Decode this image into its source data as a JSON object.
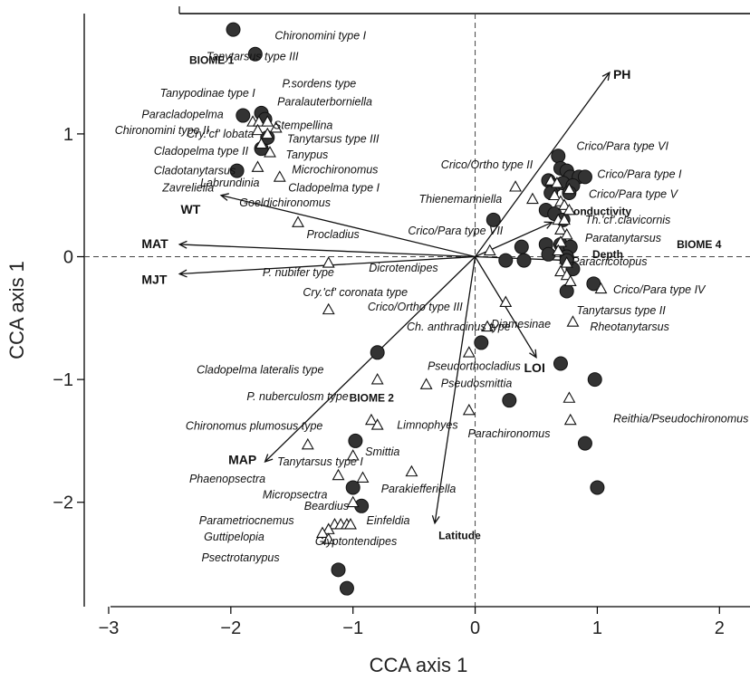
{
  "chart_data": {
    "type": "scatter",
    "xlabel": "CCA axis 1",
    "ylabel": "CCA axis 1",
    "xlim": [
      -3.2,
      2.25
    ],
    "ylim": [
      -2.85,
      1.98
    ],
    "xticks": [
      -3,
      -2,
      -1,
      0,
      1,
      2
    ],
    "yticks": [
      -2,
      -1,
      0,
      1
    ],
    "grid": false,
    "reference_lines": {
      "x": 0,
      "y": 0,
      "style": "dashed"
    },
    "sites": [
      [
        -1.98,
        1.85
      ],
      [
        -1.8,
        1.65
      ],
      [
        -1.9,
        1.15
      ],
      [
        -1.75,
        1.17
      ],
      [
        -1.72,
        1.12
      ],
      [
        -1.75,
        0.88
      ],
      [
        -1.7,
        0.97
      ],
      [
        -1.95,
        0.7
      ],
      [
        0.68,
        0.82
      ],
      [
        0.7,
        0.72
      ],
      [
        0.75,
        0.7
      ],
      [
        0.78,
        0.65
      ],
      [
        0.85,
        0.65
      ],
      [
        0.9,
        0.65
      ],
      [
        0.6,
        0.62
      ],
      [
        0.65,
        0.58
      ],
      [
        0.72,
        0.6
      ],
      [
        0.8,
        0.58
      ],
      [
        0.77,
        0.52
      ],
      [
        0.62,
        0.52
      ],
      [
        0.58,
        0.38
      ],
      [
        0.65,
        0.35
      ],
      [
        0.72,
        0.3
      ],
      [
        0.15,
        0.3
      ],
      [
        0.38,
        0.08
      ],
      [
        0.58,
        0.1
      ],
      [
        0.7,
        0.1
      ],
      [
        0.78,
        0.08
      ],
      [
        0.6,
        0.02
      ],
      [
        0.75,
        0.0
      ],
      [
        0.25,
        -0.03
      ],
      [
        0.4,
        -0.03
      ],
      [
        0.75,
        -0.03
      ],
      [
        0.8,
        -0.1
      ],
      [
        0.75,
        -0.28
      ],
      [
        0.97,
        -0.22
      ],
      [
        -0.8,
        -0.78
      ],
      [
        0.05,
        -0.7
      ],
      [
        0.7,
        -0.87
      ],
      [
        0.98,
        -1.0
      ],
      [
        0.28,
        -1.17
      ],
      [
        0.9,
        -1.52
      ],
      [
        -0.98,
        -1.5
      ],
      [
        -1.0,
        -1.88
      ],
      [
        -0.93,
        -2.03
      ],
      [
        1.0,
        -1.88
      ],
      [
        -1.12,
        -2.55
      ],
      [
        -1.05,
        -2.7
      ]
    ],
    "taxa_points": [
      [
        -1.82,
        1.1
      ],
      [
        -1.77,
        1.1
      ],
      [
        -1.7,
        1.1
      ],
      [
        -1.63,
        1.05
      ],
      [
        -1.78,
        1.03
      ],
      [
        -1.7,
        1.0
      ],
      [
        -1.75,
        0.92
      ],
      [
        -1.68,
        0.85
      ],
      [
        -1.78,
        0.73
      ],
      [
        -1.6,
        0.65
      ],
      [
        -1.45,
        0.28
      ],
      [
        -1.2,
        -0.05
      ],
      [
        -1.2,
        -0.43
      ],
      [
        0.12,
        0.05
      ],
      [
        0.33,
        0.57
      ],
      [
        0.47,
        0.47
      ],
      [
        0.62,
        0.62
      ],
      [
        0.67,
        0.6
      ],
      [
        0.77,
        0.55
      ],
      [
        0.65,
        0.5
      ],
      [
        0.7,
        0.45
      ],
      [
        0.73,
        0.42
      ],
      [
        0.77,
        0.38
      ],
      [
        0.68,
        0.3
      ],
      [
        0.73,
        0.3
      ],
      [
        0.7,
        0.22
      ],
      [
        0.75,
        0.18
      ],
      [
        0.7,
        0.12
      ],
      [
        0.68,
        0.05
      ],
      [
        0.75,
        -0.05
      ],
      [
        0.7,
        -0.12
      ],
      [
        0.75,
        -0.15
      ],
      [
        0.78,
        -0.2
      ],
      [
        1.03,
        -0.26
      ],
      [
        0.25,
        -0.37
      ],
      [
        0.1,
        -0.57
      ],
      [
        0.8,
        -0.53
      ],
      [
        -0.8,
        -1.0
      ],
      [
        -0.4,
        -1.04
      ],
      [
        -0.05,
        -0.78
      ],
      [
        -0.05,
        -1.25
      ],
      [
        0.77,
        -1.15
      ],
      [
        0.78,
        -1.33
      ],
      [
        -0.85,
        -1.33
      ],
      [
        -0.8,
        -1.37
      ],
      [
        -1.37,
        -1.53
      ],
      [
        -1.0,
        -1.62
      ],
      [
        -0.52,
        -1.75
      ],
      [
        -1.12,
        -1.78
      ],
      [
        -0.92,
        -1.8
      ],
      [
        -1.0,
        -2.0
      ],
      [
        -1.15,
        -2.18
      ],
      [
        -1.1,
        -2.18
      ],
      [
        -1.05,
        -2.18
      ],
      [
        -1.02,
        -2.18
      ],
      [
        -1.2,
        -2.22
      ],
      [
        -1.25,
        -2.25
      ],
      [
        -1.2,
        -2.3
      ]
    ],
    "taxa_labels": [
      {
        "x": -1.64,
        "y": 1.77,
        "text": "Chironomini type I"
      },
      {
        "x": -2.2,
        "y": 1.6,
        "text": "Tanytarsus type III"
      },
      {
        "x": -1.58,
        "y": 1.38,
        "text": "P.sordens type"
      },
      {
        "x": -2.58,
        "y": 1.3,
        "text": "Tanypodinae type I"
      },
      {
        "x": -1.62,
        "y": 1.23,
        "text": "Paralauterborniella"
      },
      {
        "x": -2.73,
        "y": 1.13,
        "text": "Paracladopelma"
      },
      {
        "x": -1.65,
        "y": 1.04,
        "text": "Stempellina"
      },
      {
        "x": -2.95,
        "y": 1.0,
        "text": "Chironomini type II"
      },
      {
        "x": -2.36,
        "y": 0.97,
        "text": "Cry.'cf' lobata"
      },
      {
        "x": -1.54,
        "y": 0.93,
        "text": "Tanytarsus type III"
      },
      {
        "x": -2.63,
        "y": 0.83,
        "text": "Cladopelma type II"
      },
      {
        "x": -1.55,
        "y": 0.8,
        "text": "Tanypus"
      },
      {
        "x": -2.63,
        "y": 0.67,
        "text": "Cladotanytarsus"
      },
      {
        "x": -1.5,
        "y": 0.68,
        "text": "Microchironomus"
      },
      {
        "x": -2.25,
        "y": 0.57,
        "text": "Labrundinia"
      },
      {
        "x": -2.56,
        "y": 0.53,
        "text": "Zavreliella"
      },
      {
        "x": -1.53,
        "y": 0.53,
        "text": "Cladopelma type I"
      },
      {
        "x": -1.93,
        "y": 0.41,
        "text": "Goeldichironomus"
      },
      {
        "x": -1.38,
        "y": 0.15,
        "text": "Procladius"
      },
      {
        "x": -1.74,
        "y": -0.16,
        "text": "P. nubifer type"
      },
      {
        "x": -0.87,
        "y": -0.12,
        "text": "Dicrotendipes"
      },
      {
        "x": -1.41,
        "y": -0.32,
        "text": "Cry.'cf' coronata type"
      },
      {
        "x": -0.88,
        "y": -0.44,
        "text": "Crico/Ortho type III"
      },
      {
        "x": -0.56,
        "y": -0.6,
        "text": "Ch. anthracinus type"
      },
      {
        "x": 0.13,
        "y": -0.58,
        "text": "Diamesinae"
      },
      {
        "x": -2.28,
        "y": -0.95,
        "text": "Cladopelma lateralis type"
      },
      {
        "x": -0.39,
        "y": -0.92,
        "text": "Pseudorthocladius"
      },
      {
        "x": -0.28,
        "y": -1.06,
        "text": "Pseudosmittia"
      },
      {
        "x": -1.87,
        "y": -1.17,
        "text": "P. nuberculosm type"
      },
      {
        "x": -0.64,
        "y": -1.4,
        "text": "Limnophyes"
      },
      {
        "x": -2.37,
        "y": -1.41,
        "text": "Chironomus plumosus type"
      },
      {
        "x": -1.62,
        "y": -1.7,
        "text": "Tanytarsus type I"
      },
      {
        "x": -0.9,
        "y": -1.62,
        "text": "Smittia"
      },
      {
        "x": -2.34,
        "y": -1.84,
        "text": "Phaenopsectra"
      },
      {
        "x": -0.77,
        "y": -1.92,
        "text": "Parakiefferiella"
      },
      {
        "x": -1.74,
        "y": -1.97,
        "text": "Micropsectra"
      },
      {
        "x": -1.4,
        "y": -2.06,
        "text": "Beardius"
      },
      {
        "x": -2.26,
        "y": -2.18,
        "text": "Parametriocnemus"
      },
      {
        "x": -0.89,
        "y": -2.18,
        "text": "Einfeldia"
      },
      {
        "x": -2.22,
        "y": -2.31,
        "text": "Guttipelopia"
      },
      {
        "x": -1.31,
        "y": -2.35,
        "text": "Glyptontendipes"
      },
      {
        "x": -2.24,
        "y": -2.48,
        "text": "Psectrotanypus"
      },
      {
        "x": -0.28,
        "y": 0.72,
        "text": "Crico/Ortho type II"
      },
      {
        "x": 0.83,
        "y": 0.87,
        "text": "Crico/Para type VI"
      },
      {
        "x": -0.46,
        "y": 0.44,
        "text": "Thienemanniella"
      },
      {
        "x": 1.0,
        "y": 0.64,
        "text": "Crico/Para type I"
      },
      {
        "x": 0.93,
        "y": 0.48,
        "text": "Crico/Para type V"
      },
      {
        "x": 0.9,
        "y": 0.27,
        "text": "Th.'cf'.clavicornis"
      },
      {
        "x": -0.55,
        "y": 0.18,
        "text": "Crico/Para type VII"
      },
      {
        "x": 0.9,
        "y": 0.12,
        "text": "Paratanytarsus"
      },
      {
        "x": 0.79,
        "y": -0.07,
        "text": "Paracricotopus"
      },
      {
        "x": 1.13,
        "y": -0.3,
        "text": "Crico/Para type IV"
      },
      {
        "x": 0.83,
        "y": -0.47,
        "text": "Tanytarsus type II"
      },
      {
        "x": 0.94,
        "y": -0.6,
        "text": "Rheotanytarsus"
      },
      {
        "x": 1.13,
        "y": -1.35,
        "text": "Reithia/Pseudochironomus"
      },
      {
        "x": -0.06,
        "y": -1.47,
        "text": "Parachironomus"
      }
    ],
    "vectors": [
      {
        "name": "PH",
        "x": 1.1,
        "y": 1.5,
        "lx": 1.13,
        "ly": 1.45
      },
      {
        "name": "Conductivity",
        "x": 0.63,
        "y": 0.28,
        "lx": 0.74,
        "ly": 0.34,
        "small": true
      },
      {
        "name": "Depth",
        "x": 0.75,
        "y": -0.03,
        "lx": 0.96,
        "ly": -0.01,
        "small": true
      },
      {
        "name": "LOI",
        "x": 0.5,
        "y": -0.82,
        "lx": 0.4,
        "ly": -0.94
      },
      {
        "name": "Latitude",
        "x": -0.33,
        "y": -2.17,
        "lx": -0.3,
        "ly": -2.3,
        "small": true
      },
      {
        "name": "MAP",
        "x": -1.72,
        "y": -1.67,
        "lx": -2.02,
        "ly": -1.69
      },
      {
        "name": "MJT",
        "x": -2.42,
        "y": -0.14,
        "lx": -2.73,
        "ly": -0.22
      },
      {
        "name": "MAT",
        "x": -2.42,
        "y": 0.1,
        "lx": -2.73,
        "ly": 0.07
      },
      {
        "name": "WT",
        "x": -2.08,
        "y": 0.5,
        "lx": -2.41,
        "ly": 0.35
      }
    ],
    "group_labels": [
      {
        "text": "BIOME 1",
        "x": -2.34,
        "y": 1.57
      },
      {
        "text": "BIOME 2",
        "x": -1.03,
        "y": -1.18
      },
      {
        "text": "BIOME 4",
        "x": 1.65,
        "y": 0.07
      }
    ]
  }
}
